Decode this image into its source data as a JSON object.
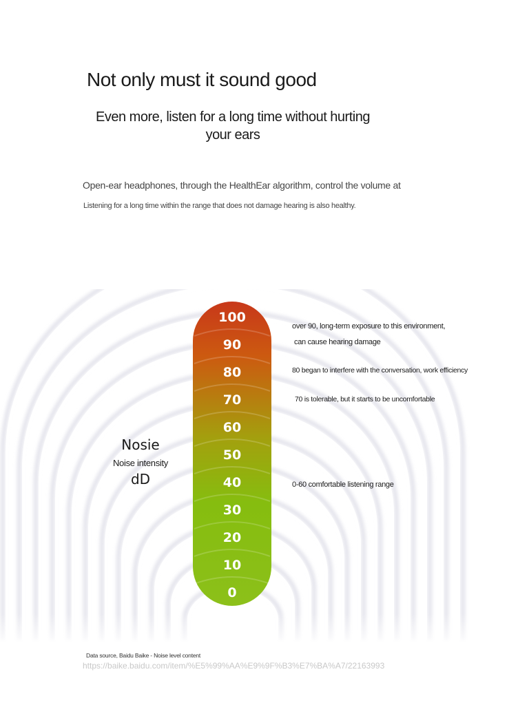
{
  "header": {
    "title": "Not only must it sound good",
    "subtitle": "Even more, listen for a long time without hurting your ears",
    "description_line1": "Open-ear headphones, through the HealthEar algorithm, control the volume at",
    "description_line2": "Listening for a long time within the range that does not damage hearing is also healthy."
  },
  "gauge": {
    "axis_name": "Nosie",
    "axis_subtitle": "Noise intensity",
    "axis_unit": "dD",
    "levels": [
      "100",
      "90",
      "80",
      "70",
      "60",
      "50",
      "40",
      "30",
      "20",
      "10",
      "0"
    ],
    "colors": {
      "top": "#c8381a",
      "upper": "#cc5a10",
      "middle": "#a3a00e",
      "lower": "#86bd0f",
      "bottom": "#8cc01a"
    }
  },
  "notes": {
    "over90_line1": "over 90, long-term exposure to this environment,",
    "over90_line2": "can cause hearing damage",
    "at80": "80 began to interfere with the conversation, work efficiency",
    "at70": "70 is tolerable, but it starts to be uncomfortable",
    "range0_60": "0-60 comfortable listening range"
  },
  "footer": {
    "source": "Data source, Baidu Baike - Noise level content",
    "url": "https://baike.baidu.com/item/%E5%99%AA%E9%9F%B3%E7%BA%A7/22163993"
  }
}
